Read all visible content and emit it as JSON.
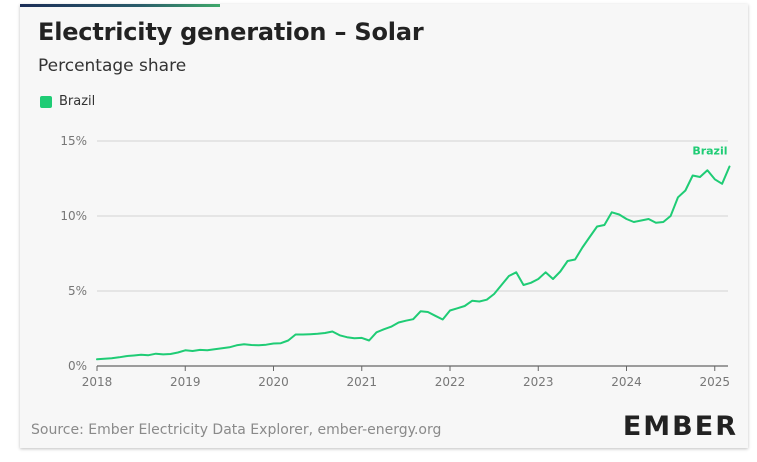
{
  "title": "Electricity generation – Solar",
  "subtitle": "Percentage share",
  "source": "Source: Ember Electricity Data Explorer, ember-energy.org",
  "logo": "EMBER",
  "colors": {
    "series": "#1fcc75",
    "grid": "#d3d3d3",
    "axis": "#666666",
    "tick_text": "#777777"
  },
  "chart_data": {
    "type": "line",
    "title": "Electricity generation – Solar",
    "subtitle": "Percentage share",
    "xlabel": "",
    "ylabel": "",
    "ylim": [
      0,
      15
    ],
    "xlim": [
      2018,
      2025.15
    ],
    "yticks": [
      0,
      5,
      10,
      15
    ],
    "ytick_labels": [
      "0%",
      "5%",
      "10%",
      "15%"
    ],
    "xticks": [
      2018,
      2019,
      2020,
      2021,
      2022,
      2023,
      2024,
      2025
    ],
    "xtick_labels": [
      "2018",
      "2019",
      "2020",
      "2021",
      "2022",
      "2023",
      "2024",
      "2025"
    ],
    "grid": true,
    "legend": "top-left",
    "series": [
      {
        "name": "Brazil",
        "end_label": "Brazil",
        "color": "#1fcc75",
        "x": [
          2018.0,
          2018.083,
          2018.167,
          2018.25,
          2018.333,
          2018.417,
          2018.5,
          2018.583,
          2018.667,
          2018.75,
          2018.833,
          2018.917,
          2019.0,
          2019.083,
          2019.167,
          2019.25,
          2019.333,
          2019.417,
          2019.5,
          2019.583,
          2019.667,
          2019.75,
          2019.833,
          2019.917,
          2020.0,
          2020.083,
          2020.167,
          2020.25,
          2020.333,
          2020.417,
          2020.5,
          2020.583,
          2020.667,
          2020.75,
          2020.833,
          2020.917,
          2021.0,
          2021.083,
          2021.167,
          2021.25,
          2021.333,
          2021.417,
          2021.5,
          2021.583,
          2021.667,
          2021.75,
          2021.833,
          2021.917,
          2022.0,
          2022.083,
          2022.167,
          2022.25,
          2022.333,
          2022.417,
          2022.5,
          2022.583,
          2022.667,
          2022.75,
          2022.833,
          2022.917,
          2023.0,
          2023.083,
          2023.167,
          2023.25,
          2023.333,
          2023.417,
          2023.5,
          2023.583,
          2023.667,
          2023.75,
          2023.833,
          2023.917,
          2024.0,
          2024.083,
          2024.167,
          2024.25,
          2024.333,
          2024.417,
          2024.5,
          2024.583,
          2024.667,
          2024.75,
          2024.833,
          2024.917,
          2025.0,
          2025.083,
          2025.167
        ],
        "y": [
          0.45,
          0.48,
          0.52,
          0.58,
          0.66,
          0.7,
          0.75,
          0.72,
          0.82,
          0.77,
          0.8,
          0.9,
          1.05,
          1.0,
          1.07,
          1.05,
          1.12,
          1.18,
          1.25,
          1.38,
          1.45,
          1.4,
          1.38,
          1.42,
          1.5,
          1.52,
          1.7,
          2.1,
          2.1,
          2.12,
          2.15,
          2.2,
          2.3,
          2.05,
          1.92,
          1.85,
          1.87,
          1.7,
          2.25,
          2.45,
          2.62,
          2.9,
          3.02,
          3.12,
          3.65,
          3.6,
          3.35,
          3.1,
          3.7,
          3.85,
          4.0,
          4.35,
          4.3,
          4.42,
          4.8,
          5.4,
          6.0,
          6.25,
          5.4,
          5.55,
          5.8,
          6.25,
          5.8,
          6.3,
          7.0,
          7.1,
          7.9,
          8.6,
          9.3,
          9.4,
          10.25,
          10.1,
          9.8,
          9.6,
          9.7,
          9.8,
          9.55,
          9.6,
          10.0,
          11.25,
          11.7,
          12.7,
          12.6,
          13.05,
          12.45,
          12.15,
          13.3
        ]
      }
    ]
  }
}
